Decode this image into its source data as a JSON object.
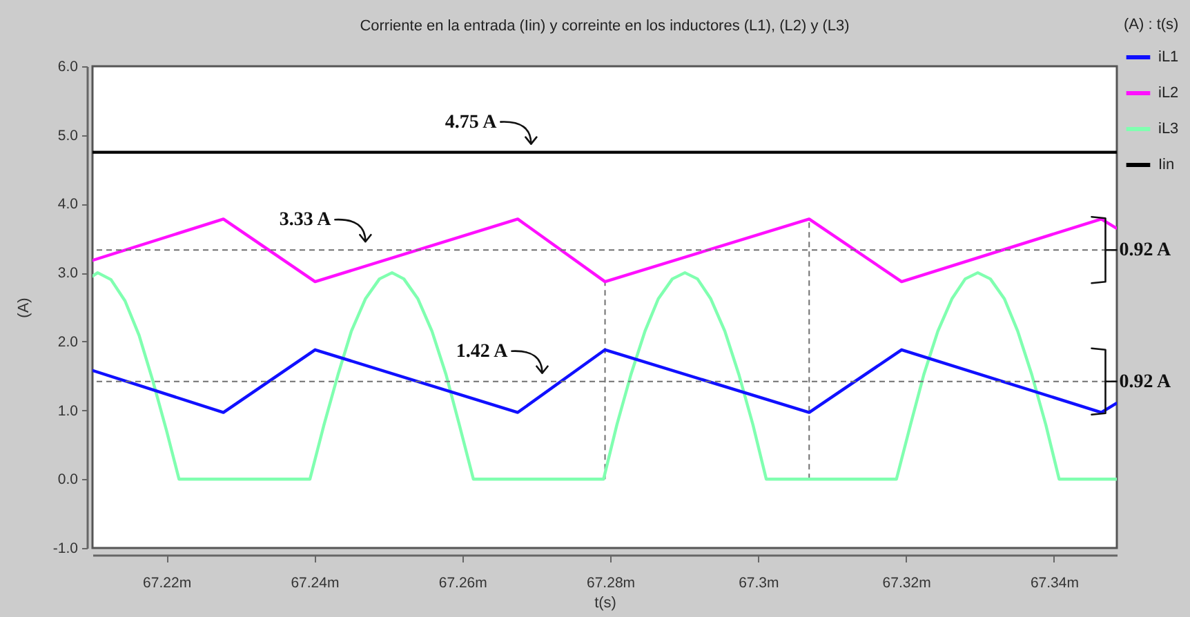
{
  "chart_data": {
    "type": "line",
    "title": "Corriente en la entrada (Iin) y correinte en los inductores (L1), (L2) y (L3)",
    "xlabel": "t(s)",
    "ylabel": "(A)",
    "legend_title": "(A) : t(s)",
    "legend": "top right",
    "xlim": [
      67.21,
      67.3485
    ],
    "xticks": [
      {
        "value": 67.22,
        "label": "67.22m"
      },
      {
        "value": 67.24,
        "label": "67.24m"
      },
      {
        "value": 67.26,
        "label": "67.26m"
      },
      {
        "value": 67.28,
        "label": "67.28m"
      },
      {
        "value": 67.3,
        "label": "67.3m"
      },
      {
        "value": 67.32,
        "label": "67.32m"
      },
      {
        "value": 67.34,
        "label": "67.34m"
      }
    ],
    "ylim": [
      -1,
      6
    ],
    "yticks": [
      {
        "value": -1,
        "label": "-1.0"
      },
      {
        "value": 0,
        "label": "0.0"
      },
      {
        "value": 1,
        "label": "1.0"
      },
      {
        "value": 2,
        "label": "2.0"
      },
      {
        "value": 3,
        "label": "3.0"
      },
      {
        "value": 4,
        "label": "4.0"
      },
      {
        "value": 5,
        "label": "5.0"
      },
      {
        "value": 6,
        "label": "6.0"
      }
    ],
    "series": [
      {
        "name": "iL1",
        "color": "#1010ff",
        "x": [
          67.21,
          67.2277,
          67.2401,
          67.2675,
          67.2793,
          67.3069,
          67.3194,
          67.3464,
          67.3484
        ],
        "values": [
          1.58,
          0.97,
          1.88,
          0.97,
          1.88,
          0.97,
          1.88,
          0.97,
          1.1
        ]
      },
      {
        "name": "iL2",
        "color": "#ff10ff",
        "x": [
          67.21,
          67.2277,
          67.2401,
          67.2675,
          67.2793,
          67.3069,
          67.3194,
          67.3464,
          67.3484
        ],
        "values": [
          3.18,
          3.78,
          2.87,
          3.78,
          2.87,
          3.78,
          2.87,
          3.78,
          3.65
        ]
      },
      {
        "name": "iL3",
        "color": "#80ffb0",
        "x": [
          67.21,
          67.2107,
          67.2125,
          67.2144,
          67.2163,
          67.2181,
          67.22,
          67.2217,
          67.2394,
          67.2413,
          67.2432,
          67.245,
          67.2469,
          67.2488,
          67.2505,
          67.2521,
          67.254,
          67.2559,
          67.2578,
          67.2596,
          67.2615,
          67.2791,
          67.2809,
          67.2828,
          67.2847,
          67.2865,
          67.2884,
          67.2901,
          67.2918,
          67.2936,
          67.2955,
          67.2974,
          67.2993,
          67.3011,
          67.3187,
          67.3206,
          67.3224,
          67.3243,
          67.3262,
          67.328,
          67.3297,
          67.3314,
          67.3333,
          67.3351,
          67.337,
          67.3389,
          67.3407,
          67.3484
        ],
        "values": [
          2.95,
          3.0,
          2.9,
          2.59,
          2.09,
          1.45,
          0.71,
          0,
          0,
          0.79,
          1.52,
          2.15,
          2.62,
          2.91,
          3.0,
          2.91,
          2.62,
          2.15,
          1.52,
          0.79,
          0,
          0,
          0.79,
          1.52,
          2.15,
          2.62,
          2.91,
          3.0,
          2.91,
          2.62,
          2.15,
          1.52,
          0.79,
          0,
          0,
          0.79,
          1.52,
          2.15,
          2.62,
          2.91,
          3.0,
          2.91,
          2.62,
          2.15,
          1.52,
          0.79,
          0,
          0
        ]
      },
      {
        "name": "Iin",
        "color": "#000000",
        "x": [
          67.21,
          67.3484
        ],
        "values": [
          4.75,
          4.75
        ]
      },
      {
        "color": "#707070",
        "line_style": "dashed",
        "x": [
          67.2793,
          67.2793
        ],
        "values": [
          0,
          2.87
        ]
      },
      {
        "color": "#707070",
        "line_style": "dashed",
        "x": [
          67.3069,
          67.3069
        ],
        "values": [
          0,
          3.78
        ]
      }
    ],
    "ref_lines": [
      {
        "axis": "y",
        "value": 3.33,
        "color": "#707070",
        "line_style": "dashed"
      },
      {
        "axis": "y",
        "value": 1.42,
        "color": "#707070",
        "line_style": "dashed"
      }
    ],
    "annotations": [
      {
        "text": "4.75 A",
        "x": 67.2693,
        "y": 4.75
      },
      {
        "text": "3.33 A",
        "x": 67.2469,
        "y": 3.33
      },
      {
        "text": "1.42 A",
        "x": 67.2708,
        "y": 1.42
      },
      {
        "text": "0.92 A",
        "x": 67.3464,
        "y": 3.33
      },
      {
        "text": "0.92 A",
        "x": 67.3464,
        "y": 1.42
      }
    ]
  }
}
